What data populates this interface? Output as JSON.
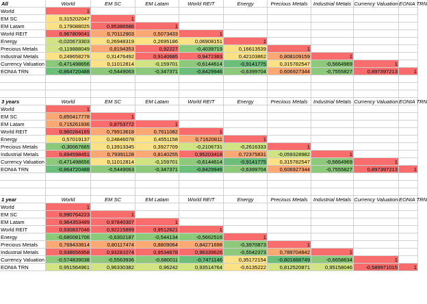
{
  "colors": {
    "red": "#f86c6b",
    "orange": "#fba875",
    "yellow": "#fde285",
    "lgreen": "#d0e484",
    "green": "#8cc97a",
    "dgreen": "#6cbf7a"
  },
  "headers": [
    "World",
    "EM SC",
    "EM Latam",
    "World REIT",
    "Energy",
    "Precious Metals",
    "Industrial Metals",
    "Currency Valuation",
    "EONIA TRN"
  ],
  "row_labels": [
    "World",
    "EM SC",
    "EM Latam",
    "World REIT",
    "Energy",
    "Precious Metals",
    "Industrial Metals",
    "Currency Valuation",
    "EONIA TRN"
  ],
  "sections": [
    {
      "title": "All",
      "rows": [
        [
          {
            "v": "1",
            "c": "red"
          }
        ],
        [
          {
            "v": "0,315202047",
            "c": "yellow"
          },
          {
            "v": "1",
            "c": "red"
          }
        ],
        [
          {
            "v": "0,179088025",
            "c": "yellow"
          },
          {
            "v": "0,95386586",
            "c": "red"
          },
          {
            "v": "1",
            "c": "red"
          }
        ],
        [
          {
            "v": "0,967809041",
            "c": "red"
          },
          {
            "v": "0,70112903",
            "c": "orange"
          },
          {
            "v": "0,5073433",
            "c": "orange"
          },
          {
            "v": "1",
            "c": "red"
          }
        ],
        [
          {
            "v": "-0,020673303",
            "c": "lgreen"
          },
          {
            "v": "0,26948319",
            "c": "yellow"
          },
          {
            "v": "0,2695186",
            "c": "yellow"
          },
          {
            "v": "0,06908151",
            "c": "yellow"
          },
          {
            "v": "1",
            "c": "red"
          }
        ],
        [
          {
            "v": "-0,119888049",
            "c": "lgreen"
          },
          {
            "v": "0,8194353",
            "c": "orange"
          },
          {
            "v": "0,92227",
            "c": "red"
          },
          {
            "v": "-0,4039719",
            "c": "green"
          },
          {
            "v": "0,16613539",
            "c": "yellow"
          },
          {
            "v": "1",
            "c": "red"
          }
        ],
        [
          {
            "v": "0,249658279",
            "c": "yellow"
          },
          {
            "v": "0,31476492",
            "c": "yellow"
          },
          {
            "v": "0,9140685",
            "c": "red"
          },
          {
            "v": "0,9472383",
            "c": "red"
          },
          {
            "v": "0,42103862",
            "c": "yellow"
          },
          {
            "v": "0,808109159",
            "c": "orange"
          },
          {
            "v": "1",
            "c": "red"
          }
        ],
        [
          {
            "v": "-0,471498656",
            "c": "green"
          },
          {
            "v": "0,11012814",
            "c": "yellow"
          },
          {
            "v": "-0,159701",
            "c": "lgreen"
          },
          {
            "v": "-0,6144614",
            "c": "green"
          },
          {
            "v": "-0,9141775",
            "c": "dgreen"
          },
          {
            "v": "0,315782547",
            "c": "yellow"
          },
          {
            "v": "-0,5664969",
            "c": "green"
          },
          {
            "v": "1",
            "c": "red"
          }
        ],
        [
          {
            "v": "-0,864720488",
            "c": "dgreen"
          },
          {
            "v": "-0,5449063",
            "c": "green"
          },
          {
            "v": "-0,347371",
            "c": "green"
          },
          {
            "v": "-0,8429946",
            "c": "dgreen"
          },
          {
            "v": "-0,6399704",
            "c": "green"
          },
          {
            "v": "0,606927344",
            "c": "orange"
          },
          {
            "v": "-0,7555827",
            "c": "green"
          },
          {
            "v": "0,897397213",
            "c": "red"
          },
          {
            "v": "1",
            "c": "red"
          }
        ]
      ]
    },
    {
      "title": "3 years",
      "rows": [
        [
          {
            "v": "1",
            "c": "red"
          }
        ],
        [
          {
            "v": "0,850417778",
            "c": "orange"
          },
          {
            "v": "1",
            "c": "red"
          }
        ],
        [
          {
            "v": "0,715261936",
            "c": "orange"
          },
          {
            "v": "0,8753772",
            "c": "red"
          },
          {
            "v": "1",
            "c": "red"
          }
        ],
        [
          {
            "v": "0,960284165",
            "c": "red"
          },
          {
            "v": "0,79913618",
            "c": "orange"
          },
          {
            "v": "0,7611082",
            "c": "orange"
          },
          {
            "v": "1",
            "c": "red"
          }
        ],
        [
          {
            "v": "0,57019137",
            "c": "yellow"
          },
          {
            "v": "0,24846078",
            "c": "yellow"
          },
          {
            "v": "0,4551158",
            "c": "yellow"
          },
          {
            "v": "0,71620811",
            "c": "orange"
          },
          {
            "v": "1",
            "c": "red"
          }
        ],
        [
          {
            "v": "-0,30067665",
            "c": "green"
          },
          {
            "v": "0,13913345",
            "c": "yellow"
          },
          {
            "v": "0,3927709",
            "c": "yellow"
          },
          {
            "v": "-0,2106731",
            "c": "lgreen"
          },
          {
            "v": "-0,2616333",
            "c": "lgreen"
          },
          {
            "v": "1",
            "c": "red"
          }
        ],
        [
          {
            "v": "0,894598451",
            "c": "red"
          },
          {
            "v": "0,79391128",
            "c": "orange"
          },
          {
            "v": "0,8140255",
            "c": "orange"
          },
          {
            "v": "0,95203418",
            "c": "red"
          },
          {
            "v": "0,72375831",
            "c": "orange"
          },
          {
            "v": "-0,059328982",
            "c": "lgreen"
          },
          {
            "v": "1",
            "c": "red"
          }
        ],
        [
          {
            "v": "-0,471498656",
            "c": "green"
          },
          {
            "v": "0,11012814",
            "c": "yellow"
          },
          {
            "v": "-0,159701",
            "c": "lgreen"
          },
          {
            "v": "-0,6144614",
            "c": "green"
          },
          {
            "v": "-0,9141775",
            "c": "dgreen"
          },
          {
            "v": "0,315782547",
            "c": "yellow"
          },
          {
            "v": "-0,5664969",
            "c": "green"
          },
          {
            "v": "1",
            "c": "red"
          }
        ],
        [
          {
            "v": "-0,864720488",
            "c": "dgreen"
          },
          {
            "v": "-0,5449063",
            "c": "green"
          },
          {
            "v": "-0,347371",
            "c": "green"
          },
          {
            "v": "-0,8429946",
            "c": "dgreen"
          },
          {
            "v": "-0,6399704",
            "c": "green"
          },
          {
            "v": "0,606927344",
            "c": "orange"
          },
          {
            "v": "-0,7555827",
            "c": "green"
          },
          {
            "v": "0,897397213",
            "c": "red"
          },
          {
            "v": "1",
            "c": "red"
          }
        ]
      ]
    },
    {
      "title": "1 year",
      "rows": [
        [
          {
            "v": "1",
            "c": "red"
          }
        ],
        [
          {
            "v": "0,990764223",
            "c": "red"
          },
          {
            "v": "1",
            "c": "red"
          }
        ],
        [
          {
            "v": "0,964353499",
            "c": "red"
          },
          {
            "v": "0,97840307",
            "c": "red"
          },
          {
            "v": "1",
            "c": "red"
          }
        ],
        [
          {
            "v": "0,930837046",
            "c": "red"
          },
          {
            "v": "0,92215899",
            "c": "red"
          },
          {
            "v": "0,9512621",
            "c": "red"
          },
          {
            "v": "1",
            "c": "red"
          }
        ],
        [
          {
            "v": "-0,680081706",
            "c": "green"
          },
          {
            "v": "-0,6302187",
            "c": "green"
          },
          {
            "v": "-0,544134",
            "c": "green"
          },
          {
            "v": "-0,5662516",
            "c": "green"
          },
          {
            "v": "1",
            "c": "red"
          }
        ],
        [
          {
            "v": "0,769433614",
            "c": "orange"
          },
          {
            "v": "0,80117474",
            "c": "orange"
          },
          {
            "v": "0,8809064",
            "c": "orange"
          },
          {
            "v": "0,84271698",
            "c": "orange"
          },
          {
            "v": "-0,3970873",
            "c": "green"
          },
          {
            "v": "1",
            "c": "red"
          }
        ],
        [
          {
            "v": "0,938656958",
            "c": "red"
          },
          {
            "v": "0,93281074",
            "c": "red"
          },
          {
            "v": "0,9534678",
            "c": "red"
          },
          {
            "v": "0,96339626",
            "c": "red"
          },
          {
            "v": "-0,5542373",
            "c": "green"
          },
          {
            "v": "0,789704842",
            "c": "orange"
          },
          {
            "v": "1",
            "c": "red"
          }
        ],
        [
          {
            "v": "-0,574839038",
            "c": "green"
          },
          {
            "v": "-0,5563936",
            "c": "green"
          },
          {
            "v": "-0,680011",
            "c": "green"
          },
          {
            "v": "-0,7471146",
            "c": "dgreen"
          },
          {
            "v": "0,35172154",
            "c": "yellow"
          },
          {
            "v": "-0,801888749",
            "c": "dgreen"
          },
          {
            "v": "-0,6658634",
            "c": "green"
          },
          {
            "v": "1",
            "c": "red"
          }
        ],
        [
          {
            "v": "0,951564961",
            "c": "lgreen"
          },
          {
            "v": "0,96330382",
            "c": "lgreen"
          },
          {
            "v": "0,96242",
            "c": "lgreen"
          },
          {
            "v": "0,93514764",
            "c": "lgreen"
          },
          {
            "v": "-0,6135222",
            "c": "yellow"
          },
          {
            "v": "0,812520871",
            "c": "lgreen"
          },
          {
            "v": "0,95158046",
            "c": "lgreen"
          },
          {
            "v": "-0,589971015",
            "c": "red"
          },
          {
            "v": "1",
            "c": "red"
          }
        ]
      ]
    }
  ]
}
